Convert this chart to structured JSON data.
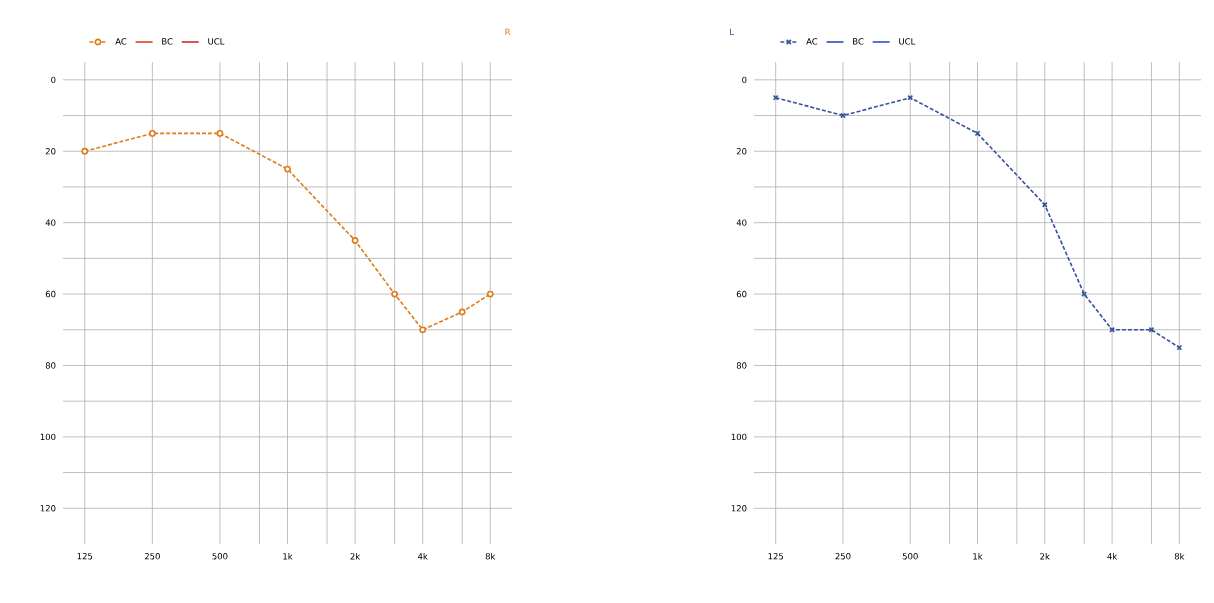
{
  "chart_data": [
    {
      "type": "line",
      "title": "R",
      "x": [
        125,
        250,
        500,
        1000,
        2000,
        3000,
        4000,
        6000,
        8000
      ],
      "series": [
        {
          "name": "AC",
          "color": "#e07b1a",
          "values": [
            20,
            15,
            15,
            25,
            45,
            60,
            70,
            65,
            60
          ],
          "marker": "circle",
          "line_style": "dashed"
        },
        {
          "name": "BC",
          "color": "#e0401e",
          "values": [
            null,
            null,
            null,
            null,
            null,
            null,
            null,
            null,
            null
          ]
        },
        {
          "name": "UCL",
          "color": "#d02a2a",
          "values": [
            null,
            null,
            null,
            null,
            null,
            null,
            null,
            null,
            null
          ]
        }
      ],
      "log": "x",
      "xlim": [
        100,
        10000
      ],
      "xticks": [
        125,
        250,
        500,
        {
          "value": 750,
          "label": null
        },
        {
          "value": 1000,
          "label": "1k"
        },
        {
          "value": 1500,
          "label": null
        },
        {
          "value": 2000,
          "label": "2k"
        },
        {
          "value": 3000,
          "label": null
        },
        {
          "value": 4000,
          "label": "4k"
        },
        {
          "value": 6000,
          "label": null
        },
        {
          "value": 8000,
          "label": "8k"
        }
      ],
      "ylim": [
        130,
        -5
      ],
      "yticks": [
        0,
        {
          "value": 10,
          "label": null
        },
        20,
        {
          "value": 30,
          "label": null
        },
        40,
        {
          "value": 50,
          "label": null
        },
        60,
        {
          "value": 70,
          "label": null
        },
        80,
        {
          "value": 90,
          "label": null
        },
        100,
        {
          "value": 110,
          "label": null
        },
        120
      ],
      "grid": true,
      "legend": "top left"
    },
    {
      "type": "line",
      "title": "L",
      "x": [
        125,
        250,
        500,
        1000,
        2000,
        3000,
        4000,
        6000,
        8000
      ],
      "series": [
        {
          "name": "AC",
          "color": "#34529e",
          "values": [
            5,
            10,
            5,
            15,
            35,
            60,
            70,
            70,
            75
          ],
          "marker": "cross",
          "line_style": "dashed"
        },
        {
          "name": "BC",
          "color": "#2a4cc0",
          "values": [
            null,
            null,
            null,
            null,
            null,
            null,
            null,
            null,
            null
          ]
        },
        {
          "name": "UCL",
          "color": "#3050d0",
          "values": [
            null,
            null,
            null,
            null,
            null,
            null,
            null,
            null,
            null
          ]
        }
      ],
      "log": "x",
      "xlim": [
        100,
        10000
      ],
      "xticks": [
        125,
        250,
        500,
        {
          "value": 750,
          "label": null
        },
        {
          "value": 1000,
          "label": "1k"
        },
        {
          "value": 1500,
          "label": null
        },
        {
          "value": 2000,
          "label": "2k"
        },
        {
          "value": 3000,
          "label": null
        },
        {
          "value": 4000,
          "label": "4k"
        },
        {
          "value": 6000,
          "label": null
        },
        {
          "value": 8000,
          "label": "8k"
        }
      ],
      "ylim": [
        130,
        -5
      ],
      "yticks": [
        0,
        {
          "value": 10,
          "label": null
        },
        20,
        {
          "value": 30,
          "label": null
        },
        40,
        {
          "value": 50,
          "label": null
        },
        60,
        {
          "value": 70,
          "label": null
        },
        80,
        {
          "value": 90,
          "label": null
        },
        100,
        {
          "value": 110,
          "label": null
        },
        120
      ],
      "grid": true,
      "legend": "top left"
    }
  ]
}
